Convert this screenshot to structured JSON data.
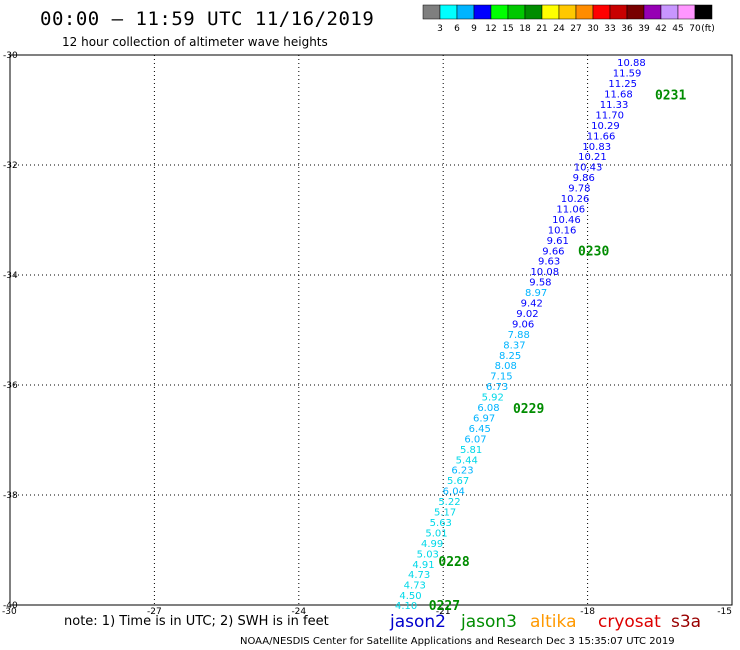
{
  "title": "00:00 – 11:59 UTC 11/16/2019",
  "subtitle": "12 hour collection of altimeter wave heights",
  "colorbar": {
    "labels": [
      "3",
      "6",
      "9",
      "12",
      "15",
      "18",
      "21",
      "24",
      "27",
      "30",
      "33",
      "36",
      "39",
      "42",
      "45",
      "70"
    ],
    "unit": "(ft)",
    "colors": [
      "#7f7f7f",
      "#00ffff",
      "#00b4ff",
      "#0000ff",
      "#00ff00",
      "#00c800",
      "#008c00",
      "#ffff00",
      "#ffc800",
      "#ff8c00",
      "#ff0000",
      "#c80000",
      "#780000",
      "#9600b4",
      "#c896ff",
      "#ff96ff",
      "#000000"
    ]
  },
  "note": "note: 1) Time is in UTC; 2) SWH is in feet",
  "satellites": [
    {
      "name": "jason2",
      "color": "#0000cc"
    },
    {
      "name": "jason3",
      "color": "#008c00"
    },
    {
      "name": "altika",
      "color": "#ff9900"
    },
    {
      "name": "cryosat",
      "color": "#dd0000"
    },
    {
      "name": "s3a",
      "color": "#990000"
    }
  ],
  "footer": "NOAA/NESDIS Center for Satellite Applications and Research    Dec  3 15:35:07 UTC 2019",
  "chart_data": {
    "type": "scatter",
    "x_ticks": [
      "-30",
      "-27",
      "-24",
      "-21",
      "-18",
      "-15"
    ],
    "y_ticks": [
      "-30",
      "-32",
      "-34",
      "-36",
      "-38",
      "-40"
    ],
    "xlim": [
      -30,
      -15
    ],
    "ylim": [
      -40,
      -30
    ],
    "grid": true,
    "series": [
      {
        "name": "jason2",
        "points": [
          {
            "lon": -17.09,
            "lat": -30.13,
            "v": "10.88"
          },
          {
            "lon": -17.18,
            "lat": -30.32,
            "v": "11.59"
          },
          {
            "lon": -17.27,
            "lat": -30.51,
            "v": "11.25"
          },
          {
            "lon": -17.36,
            "lat": -30.7,
            "v": "11.68"
          },
          {
            "lon": -17.45,
            "lat": -30.89,
            "v": "11.33"
          },
          {
            "lon": -17.54,
            "lat": -31.08,
            "v": "11.70"
          },
          {
            "lon": -17.63,
            "lat": -31.27,
            "v": "10.29"
          },
          {
            "lon": -17.72,
            "lat": -31.46,
            "v": "11.66"
          },
          {
            "lon": -17.81,
            "lat": -31.65,
            "v": "10.83"
          },
          {
            "lon": -17.9,
            "lat": -31.84,
            "v": "10.21"
          },
          {
            "lon": -17.99,
            "lat": -32.03,
            "v": "10.43"
          },
          {
            "lon": -18.08,
            "lat": -32.22,
            "v": "9.86"
          },
          {
            "lon": -18.17,
            "lat": -32.41,
            "v": "9.78"
          },
          {
            "lon": -18.26,
            "lat": -32.6,
            "v": "10.26"
          },
          {
            "lon": -18.35,
            "lat": -32.79,
            "v": "11.06"
          },
          {
            "lon": -18.44,
            "lat": -32.98,
            "v": "10.46"
          },
          {
            "lon": -18.53,
            "lat": -33.17,
            "v": "10.16"
          },
          {
            "lon": -18.62,
            "lat": -33.36,
            "v": "9.61"
          },
          {
            "lon": -18.71,
            "lat": -33.55,
            "v": "9.66"
          },
          {
            "lon": -18.8,
            "lat": -33.74,
            "v": "9.63"
          },
          {
            "lon": -18.89,
            "lat": -33.93,
            "v": "10.08"
          },
          {
            "lon": -18.98,
            "lat": -34.12,
            "v": "9.58"
          },
          {
            "lon": -19.07,
            "lat": -34.31,
            "v": "8.97"
          },
          {
            "lon": -19.16,
            "lat": -34.5,
            "v": "9.42"
          },
          {
            "lon": -19.25,
            "lat": -34.69,
            "v": "9.02"
          },
          {
            "lon": -19.34,
            "lat": -34.88,
            "v": "9.06"
          },
          {
            "lon": -19.43,
            "lat": -35.07,
            "v": "7.88"
          },
          {
            "lon": -19.52,
            "lat": -35.26,
            "v": "8.37"
          },
          {
            "lon": -19.61,
            "lat": -35.45,
            "v": "8.25"
          },
          {
            "lon": -19.7,
            "lat": -35.64,
            "v": "8.08"
          },
          {
            "lon": -19.79,
            "lat": -35.83,
            "v": "7.15"
          },
          {
            "lon": -19.88,
            "lat": -36.02,
            "v": "6.73"
          },
          {
            "lon": -19.97,
            "lat": -36.21,
            "v": "5.92"
          },
          {
            "lon": -20.06,
            "lat": -36.4,
            "v": "6.08"
          },
          {
            "lon": -20.15,
            "lat": -36.59,
            "v": "6.97"
          },
          {
            "lon": -20.24,
            "lat": -36.78,
            "v": "6.45"
          },
          {
            "lon": -20.33,
            "lat": -36.97,
            "v": "6.07"
          },
          {
            "lon": -20.42,
            "lat": -37.16,
            "v": "5.81"
          },
          {
            "lon": -20.51,
            "lat": -37.35,
            "v": "5.44"
          },
          {
            "lon": -20.6,
            "lat": -37.54,
            "v": "6.23"
          },
          {
            "lon": -20.69,
            "lat": -37.73,
            "v": "5.67"
          },
          {
            "lon": -20.78,
            "lat": -37.92,
            "v": "6.04"
          },
          {
            "lon": -20.87,
            "lat": -38.11,
            "v": "5.22"
          },
          {
            "lon": -20.96,
            "lat": -38.3,
            "v": "5.17"
          },
          {
            "lon": -21.05,
            "lat": -38.49,
            "v": "5.63"
          },
          {
            "lon": -21.14,
            "lat": -38.68,
            "v": "5.01"
          },
          {
            "lon": -21.23,
            "lat": -38.87,
            "v": "4.99"
          },
          {
            "lon": -21.32,
            "lat": -39.06,
            "v": "5.03"
          },
          {
            "lon": -21.41,
            "lat": -39.25,
            "v": "4.91"
          },
          {
            "lon": -21.5,
            "lat": -39.44,
            "v": "4.73"
          },
          {
            "lon": -21.59,
            "lat": -39.63,
            "v": "4.73"
          },
          {
            "lon": -21.68,
            "lat": -39.82,
            "v": "4.50"
          },
          {
            "lon": -21.77,
            "lat": -40.0,
            "v": "4.10"
          }
        ]
      }
    ],
    "time_labels": [
      {
        "label": "0231",
        "lon": -16.6,
        "lat": -30.72
      },
      {
        "label": "0230",
        "lon": -18.2,
        "lat": -33.55
      },
      {
        "label": "0229",
        "lon": -19.55,
        "lat": -36.42
      },
      {
        "label": "0228",
        "lon": -21.1,
        "lat": -39.2
      },
      {
        "label": "0227",
        "lon": -21.3,
        "lat": -40.0
      }
    ]
  }
}
